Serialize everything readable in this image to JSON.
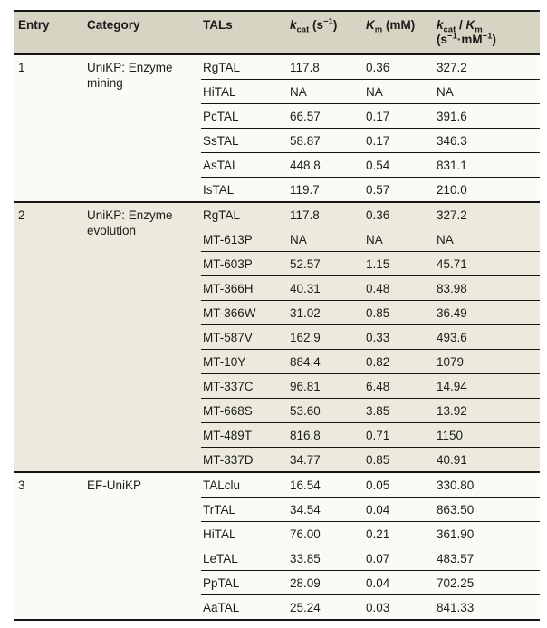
{
  "colors": {
    "line": "#161616",
    "header_bg": "#d6d4c2",
    "section_alt_bg": "#ebeadd",
    "section_white_bg": "#fbfbf6",
    "text": "#1c1c1c"
  },
  "table": {
    "headers": {
      "entry": "Entry",
      "category": "Category",
      "tals": "TALs",
      "kcat_html": "<i>k</i><sub>cat</sub> (s<sup>−1</sup>)",
      "km_html": "<i>K</i><sub>m</sub> (mM)",
      "ratio_html": "<i>k</i><sub>cat</sub> / <i>K</i><sub>m</sub><br>(s<sup>−1</sup>·mM<sup>−1</sup>)"
    },
    "sections": [
      {
        "entry": "1",
        "category": "UniKP: Enzyme mining",
        "rows": [
          {
            "tal": "RgTAL",
            "kcat": "117.8",
            "km": "0.36",
            "ratio": "327.2"
          },
          {
            "tal": "HiTAL",
            "kcat": "NA",
            "km": "NA",
            "ratio": "NA"
          },
          {
            "tal": "PcTAL",
            "kcat": "66.57",
            "km": "0.17",
            "ratio": "391.6"
          },
          {
            "tal": "SsTAL",
            "kcat": "58.87",
            "km": "0.17",
            "ratio": "346.3"
          },
          {
            "tal": "AsTAL",
            "kcat": "448.8",
            "km": "0.54",
            "ratio": "831.1"
          },
          {
            "tal": "IsTAL",
            "kcat": "119.7",
            "km": "0.57",
            "ratio": "210.0"
          }
        ]
      },
      {
        "entry": "2",
        "category": "UniKP: Enzyme evolution",
        "rows": [
          {
            "tal": "RgTAL",
            "kcat": "117.8",
            "km": "0.36",
            "ratio": "327.2"
          },
          {
            "tal": "MT-613P",
            "kcat": "NA",
            "km": "NA",
            "ratio": "NA"
          },
          {
            "tal": "MT-603P",
            "kcat": "52.57",
            "km": "1.15",
            "ratio": "45.71"
          },
          {
            "tal": "MT-366H",
            "kcat": "40.31",
            "km": "0.48",
            "ratio": "83.98"
          },
          {
            "tal": "MT-366W",
            "kcat": "31.02",
            "km": "0.85",
            "ratio": "36.49"
          },
          {
            "tal": "MT-587V",
            "kcat": "162.9",
            "km": "0.33",
            "ratio": "493.6"
          },
          {
            "tal": "MT-10Y",
            "kcat": "884.4",
            "km": "0.82",
            "ratio": "1079"
          },
          {
            "tal": "MT-337C",
            "kcat": "96.81",
            "km": "6.48",
            "ratio": "14.94"
          },
          {
            "tal": "MT-668S",
            "kcat": "53.60",
            "km": "3.85",
            "ratio": "13.92"
          },
          {
            "tal": "MT-489T",
            "kcat": "816.8",
            "km": "0.71",
            "ratio": "1150"
          },
          {
            "tal": "MT-337D",
            "kcat": "34.77",
            "km": "0.85",
            "ratio": "40.91"
          }
        ]
      },
      {
        "entry": "3",
        "category": "EF-UniKP",
        "rows": [
          {
            "tal": "TALclu",
            "kcat": "16.54",
            "km": "0.05",
            "ratio": "330.80"
          },
          {
            "tal": "TrTAL",
            "kcat": "34.54",
            "km": "0.04",
            "ratio": "863.50"
          },
          {
            "tal": "HiTAL",
            "kcat": "76.00",
            "km": "0.21",
            "ratio": "361.90"
          },
          {
            "tal": "LeTAL",
            "kcat": "33.85",
            "km": "0.07",
            "ratio": "483.57"
          },
          {
            "tal": "PpTAL",
            "kcat": "28.09",
            "km": "0.04",
            "ratio": "702.25"
          },
          {
            "tal": "AaTAL",
            "kcat": "25.24",
            "km": "0.03",
            "ratio": "841.33"
          }
        ]
      }
    ]
  }
}
